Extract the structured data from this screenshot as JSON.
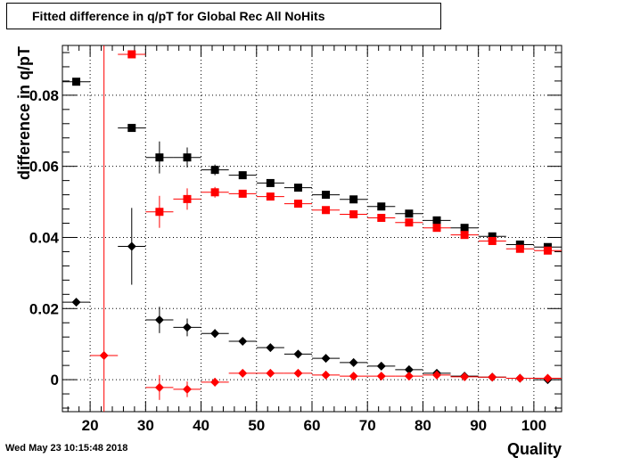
{
  "title": "Fitted difference in q/pT for Global Rec All NoHits",
  "timestamp": "Wed May 23 10:15:48 2018",
  "chart_data": {
    "type": "scatter",
    "xlabel": "Quality",
    "ylabel": "difference in q/pT",
    "xlim": [
      15,
      105
    ],
    "ylim": [
      -0.009,
      0.094
    ],
    "x_ticks": [
      20,
      30,
      40,
      50,
      60,
      70,
      80,
      90,
      100
    ],
    "y_ticks": [
      0,
      0.02,
      0.04,
      0.06,
      0.08
    ],
    "x_tick_labels": [
      "20",
      "30",
      "40",
      "50",
      "60",
      "70",
      "80",
      "90",
      "100"
    ],
    "y_tick_labels": [
      "0",
      "0.02",
      "0.04",
      "0.06",
      "0.08"
    ],
    "grid": true,
    "x_bin_half_width": 2.5,
    "series": [
      {
        "marker": "square",
        "color": "#000000",
        "points": [
          {
            "x": 17.5,
            "y": 0.0838,
            "err": 0.0
          },
          {
            "x": 27.5,
            "y": 0.0708,
            "err": 0.0
          },
          {
            "x": 32.5,
            "y": 0.0625,
            "err": 0.0045
          },
          {
            "x": 37.5,
            "y": 0.0625,
            "err": 0.0028
          },
          {
            "x": 42.5,
            "y": 0.059,
            "err": 0.0015
          },
          {
            "x": 47.5,
            "y": 0.0575,
            "err": 0.001
          },
          {
            "x": 52.5,
            "y": 0.0553,
            "err": 0.0008
          },
          {
            "x": 57.5,
            "y": 0.054,
            "err": 0.0006
          },
          {
            "x": 62.5,
            "y": 0.052,
            "err": 0.0005
          },
          {
            "x": 67.5,
            "y": 0.0507,
            "err": 0.0005
          },
          {
            "x": 72.5,
            "y": 0.0487,
            "err": 0.0004
          },
          {
            "x": 77.5,
            "y": 0.0467,
            "err": 0.0004
          },
          {
            "x": 82.5,
            "y": 0.0448,
            "err": 0.0003
          },
          {
            "x": 87.5,
            "y": 0.0427,
            "err": 0.0003
          },
          {
            "x": 92.5,
            "y": 0.0403,
            "err": 0.0003
          },
          {
            "x": 97.5,
            "y": 0.038,
            "err": 0.0003
          },
          {
            "x": 102.5,
            "y": 0.0373,
            "err": 0.0003
          }
        ]
      },
      {
        "marker": "square",
        "color": "#ff0000",
        "points": [
          {
            "x": 27.5,
            "y": 0.0915,
            "err": 0.0
          },
          {
            "x": 32.5,
            "y": 0.0472,
            "err": 0.0045
          },
          {
            "x": 37.5,
            "y": 0.0508,
            "err": 0.003
          },
          {
            "x": 42.5,
            "y": 0.0527,
            "err": 0.0015
          },
          {
            "x": 47.5,
            "y": 0.0523,
            "err": 0.001
          },
          {
            "x": 52.5,
            "y": 0.0515,
            "err": 0.0008
          },
          {
            "x": 57.5,
            "y": 0.0495,
            "err": 0.0006
          },
          {
            "x": 62.5,
            "y": 0.0477,
            "err": 0.0005
          },
          {
            "x": 67.5,
            "y": 0.0465,
            "err": 0.0005
          },
          {
            "x": 72.5,
            "y": 0.0455,
            "err": 0.0004
          },
          {
            "x": 77.5,
            "y": 0.0442,
            "err": 0.0004
          },
          {
            "x": 82.5,
            "y": 0.0427,
            "err": 0.0003
          },
          {
            "x": 87.5,
            "y": 0.0407,
            "err": 0.0003
          },
          {
            "x": 92.5,
            "y": 0.039,
            "err": 0.0003
          },
          {
            "x": 97.5,
            "y": 0.0368,
            "err": 0.0003
          },
          {
            "x": 102.5,
            "y": 0.0363,
            "err": 0.0003
          }
        ]
      },
      {
        "marker": "diamond",
        "color": "#000000",
        "points": [
          {
            "x": 17.5,
            "y": 0.0218,
            "err": 0.0
          },
          {
            "x": 27.5,
            "y": 0.0375,
            "err": 0.0108
          },
          {
            "x": 32.5,
            "y": 0.0168,
            "err": 0.0037
          },
          {
            "x": 37.5,
            "y": 0.0147,
            "err": 0.0025
          },
          {
            "x": 42.5,
            "y": 0.013,
            "err": 0.0012
          },
          {
            "x": 47.5,
            "y": 0.0108,
            "err": 0.0008
          },
          {
            "x": 52.5,
            "y": 0.009,
            "err": 0.0006
          },
          {
            "x": 57.5,
            "y": 0.0072,
            "err": 0.0005
          },
          {
            "x": 62.5,
            "y": 0.006,
            "err": 0.0004
          },
          {
            "x": 67.5,
            "y": 0.0048,
            "err": 0.0004
          },
          {
            "x": 72.5,
            "y": 0.0038,
            "err": 0.0003
          },
          {
            "x": 77.5,
            "y": 0.0028,
            "err": 0.0003
          },
          {
            "x": 82.5,
            "y": 0.0018,
            "err": 0.0003
          },
          {
            "x": 87.5,
            "y": 0.001,
            "err": 0.0003
          },
          {
            "x": 92.5,
            "y": 0.0007,
            "err": 0.0002
          },
          {
            "x": 97.5,
            "y": 0.0004,
            "err": 0.0002
          },
          {
            "x": 102.5,
            "y": 0.0,
            "err": 0.0002
          }
        ]
      },
      {
        "marker": "diamond",
        "color": "#ff0000",
        "points": [
          {
            "x": 22.5,
            "y": 0.0068,
            "err": 0.095
          },
          {
            "x": 32.5,
            "y": -0.0022,
            "err": 0.0035
          },
          {
            "x": 37.5,
            "y": -0.0027,
            "err": 0.0022
          },
          {
            "x": 42.5,
            "y": -0.0007,
            "err": 0.0012
          },
          {
            "x": 47.5,
            "y": 0.0018,
            "err": 0.0008
          },
          {
            "x": 52.5,
            "y": 0.0018,
            "err": 0.0006
          },
          {
            "x": 57.5,
            "y": 0.0018,
            "err": 0.0005
          },
          {
            "x": 62.5,
            "y": 0.0013,
            "err": 0.0004
          },
          {
            "x": 67.5,
            "y": 0.001,
            "err": 0.0004
          },
          {
            "x": 72.5,
            "y": 0.001,
            "err": 0.0003
          },
          {
            "x": 77.5,
            "y": 0.001,
            "err": 0.0003
          },
          {
            "x": 82.5,
            "y": 0.0013,
            "err": 0.0003
          },
          {
            "x": 87.5,
            "y": 0.0008,
            "err": 0.0003
          },
          {
            "x": 92.5,
            "y": 0.0007,
            "err": 0.0002
          },
          {
            "x": 97.5,
            "y": 0.0004,
            "err": 0.0002
          },
          {
            "x": 102.5,
            "y": 0.0004,
            "err": 0.0002
          }
        ]
      }
    ]
  }
}
